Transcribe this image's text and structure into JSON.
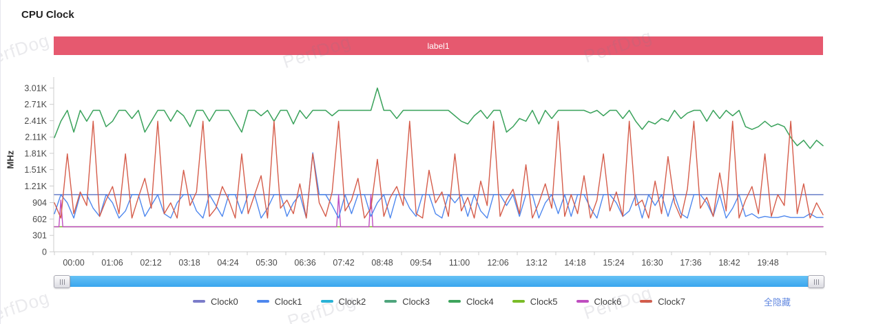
{
  "page": {
    "title": "CPU Clock"
  },
  "banner": {
    "label": "label1",
    "color": "#e6596f"
  },
  "watermark": {
    "text": "PerfDog"
  },
  "legend": {
    "hide_all": "全隐藏"
  },
  "scrollbar": {
    "track_color": "#45aef3"
  },
  "chart_data": {
    "type": "line",
    "title": "CPU Clock",
    "xlabel": "",
    "ylabel": "MHz",
    "grid": false,
    "legend_position": "bottom",
    "ylim": [
      0,
      3212
    ],
    "y_tick_labels": [
      "0",
      "301",
      "602",
      "904",
      "1.21K",
      "1.51K",
      "1.81K",
      "2.11K",
      "2.41K",
      "2.71K",
      "3.01K"
    ],
    "y_tick_values": [
      0,
      301,
      602,
      904,
      1210,
      1510,
      1810,
      2110,
      2410,
      2710,
      3010
    ],
    "x_tick_labels": [
      "00:00",
      "01:06",
      "02:12",
      "03:18",
      "04:24",
      "05:30",
      "06:36",
      "07:42",
      "08:48",
      "09:54",
      "11:00",
      "12:06",
      "13:12",
      "14:18",
      "15:24",
      "16:30",
      "17:36",
      "18:42",
      "19:48"
    ],
    "series": [
      {
        "name": "Clock0",
        "color": "#7b7cc9",
        "baseline": 1050
      },
      {
        "name": "Clock1",
        "color": "#4e87ee",
        "values": [
          700,
          1050,
          900,
          620,
          1050,
          1050,
          800,
          650,
          1050,
          900,
          620,
          750,
          1050,
          1050,
          650,
          850,
          1050,
          700,
          620,
          900,
          1050,
          1050,
          750,
          620,
          1050,
          850,
          650,
          1050,
          1050,
          700,
          1050,
          1050,
          620,
          800,
          1050,
          1050,
          650,
          900,
          1050,
          620,
          1820,
          1050,
          1050,
          850,
          620,
          1050,
          700,
          1050,
          1050,
          650,
          900,
          1050,
          620,
          1050,
          1050,
          800,
          650,
          1050,
          1050,
          700,
          620,
          1050,
          900,
          1050,
          650,
          1050,
          750,
          620,
          1050,
          1050,
          850,
          1050,
          650,
          1050,
          1050,
          620,
          900,
          1050,
          700,
          1050,
          650,
          1050,
          1050,
          800,
          620,
          1050,
          1050,
          900,
          650,
          750,
          1050,
          620,
          1050,
          850,
          1050,
          650,
          1050,
          700,
          620,
          1050,
          1050,
          900,
          650,
          1050,
          620,
          800,
          1050,
          650,
          700,
          620,
          650,
          630,
          630,
          660,
          630,
          630,
          630,
          700,
          630,
          630
        ]
      },
      {
        "name": "Clock2",
        "color": "#29b2d6",
        "baseline": 1050
      },
      {
        "name": "Clock3",
        "color": "#4fa57d",
        "values": [
          2100,
          2400,
          2600,
          2200,
          2600,
          2400,
          2600,
          2600,
          2300,
          2400,
          2600,
          2600,
          2450,
          2600,
          2200,
          2400,
          2600,
          2600,
          2400,
          2600,
          2500,
          2300,
          2600,
          2600,
          2400,
          2600,
          2600,
          2600,
          2400,
          2200,
          2600,
          2600,
          2500,
          2600,
          2400,
          2600,
          2600,
          2350,
          2600,
          2450,
          2600,
          2600,
          2600,
          2500,
          2600,
          2600,
          2600,
          2600,
          2600,
          2600,
          3010,
          2600,
          2600,
          2450,
          2600,
          2600,
          2600,
          2600,
          2600,
          2600,
          2600,
          2600,
          2500,
          2400,
          2350,
          2500,
          2600,
          2450,
          2600,
          2600,
          2200,
          2300,
          2450,
          2400,
          2600,
          2350,
          2600,
          2450,
          2600,
          2600,
          2600,
          2600,
          2600,
          2550,
          2600,
          2500,
          2600,
          2600,
          2450,
          2600,
          2400,
          2250,
          2400,
          2350,
          2450,
          2400,
          2600,
          2450,
          2550,
          2600,
          2600,
          2400,
          2600,
          2450,
          2600,
          2500,
          2600,
          2300,
          2250,
          2300,
          2400,
          2300,
          2350,
          2300,
          2100,
          1950,
          2050,
          1900,
          2050,
          1950
        ]
      },
      {
        "name": "Clock4",
        "color": "#3da45c",
        "same_as": "Clock3"
      },
      {
        "name": "Clock5",
        "color": "#7abc27",
        "baseline": 460
      },
      {
        "name": "Clock6",
        "color": "#bf4ec0",
        "baseline": 460,
        "spikes": [
          {
            "i": 1,
            "v": 950
          },
          {
            "i": 44,
            "v": 1050
          },
          {
            "i": 49,
            "v": 1050
          }
        ]
      },
      {
        "name": "Clock7",
        "color": "#d55c4a",
        "values": [
          900,
          620,
          1800,
          700,
          1100,
          850,
          2400,
          650,
          950,
          1200,
          700,
          1800,
          620,
          1000,
          1350,
          800,
          2400,
          700,
          900,
          620,
          1500,
          850,
          1100,
          2400,
          650,
          800,
          1200,
          950,
          620,
          1800,
          700,
          1050,
          1400,
          620,
          2400,
          800,
          950,
          700,
          1250,
          620,
          1800,
          900,
          650,
          1100,
          2400,
          750,
          950,
          1350,
          620,
          800,
          1700,
          650,
          1000,
          1200,
          850,
          2400,
          700,
          620,
          1500,
          900,
          1100,
          650,
          1800,
          750,
          1000,
          620,
          1300,
          850,
          2400,
          650,
          950,
          1150,
          700,
          1600,
          620,
          900,
          1250,
          800,
          2400,
          650,
          1050,
          700,
          1400,
          620,
          950,
          1800,
          750,
          1100,
          650,
          2400,
          850,
          950,
          620,
          1300,
          700,
          1750,
          900,
          620,
          1150,
          2400,
          800,
          1000,
          650,
          1450,
          750,
          2400,
          620,
          950,
          1200,
          700,
          1800,
          650,
          1050,
          850,
          2400,
          700,
          1250,
          620,
          900,
          680
        ]
      }
    ]
  }
}
